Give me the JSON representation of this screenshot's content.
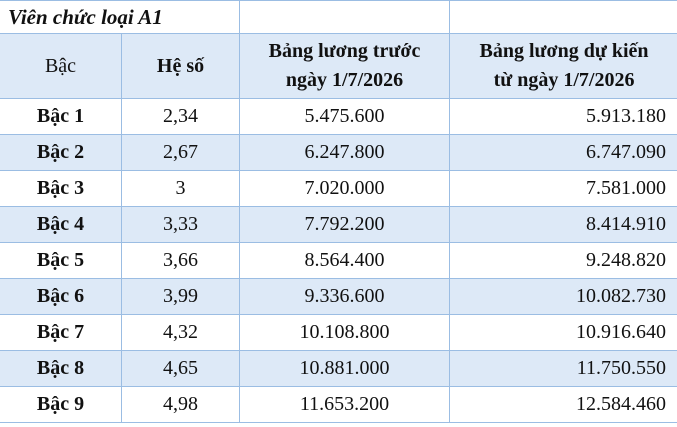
{
  "title": "Viên chức loại A1",
  "headers": [
    "Bậc",
    "Hệ số",
    "Bảng lương trước ngày 1/7/2026",
    "Bảng lương dự kiến từ ngày 1/7/2026"
  ],
  "header_lines": {
    "c3a": "Bảng lương trước",
    "c3b": "ngày 1/7/2026",
    "c4a": "Bảng lương dự kiến",
    "c4b": "từ ngày 1/7/2026"
  },
  "colors": {
    "border": "#9bbde3",
    "shade": "#dde9f7"
  },
  "rows": [
    {
      "bac": "Bậc 1",
      "heso": "2,34",
      "truoc": "5.475.600",
      "sau": "5.913.180"
    },
    {
      "bac": "Bậc 2",
      "heso": "2,67",
      "truoc": "6.247.800",
      "sau": "6.747.090"
    },
    {
      "bac": "Bậc 3",
      "heso": "3",
      "truoc": "7.020.000",
      "sau": "7.581.000"
    },
    {
      "bac": "Bậc 4",
      "heso": "3,33",
      "truoc": "7.792.200",
      "sau": "8.414.910"
    },
    {
      "bac": "Bậc 5",
      "heso": "3,66",
      "truoc": "8.564.400",
      "sau": "9.248.820"
    },
    {
      "bac": "Bậc 6",
      "heso": "3,99",
      "truoc": "9.336.600",
      "sau": "10.082.730"
    },
    {
      "bac": "Bậc 7",
      "heso": "4,32",
      "truoc": "10.108.800",
      "sau": "10.916.640"
    },
    {
      "bac": "Bậc 8",
      "heso": "4,65",
      "truoc": "10.881.000",
      "sau": "11.750.550"
    },
    {
      "bac": "Bậc 9",
      "heso": "4,98",
      "truoc": "11.653.200",
      "sau": "12.584.460"
    }
  ]
}
